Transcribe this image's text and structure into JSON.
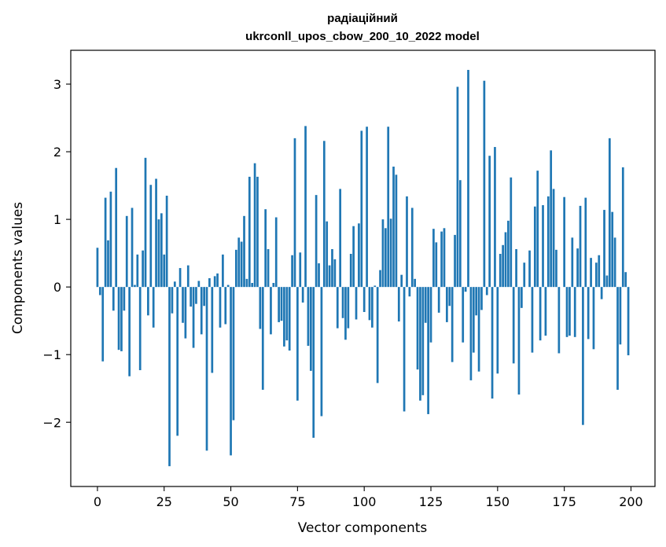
{
  "chart_data": {
    "type": "bar",
    "title_line1": "радіаційний",
    "title_line2": "ukrconll_upos_cbow_200_10_2022 model",
    "xlabel": "Vector components",
    "ylabel": "Components values",
    "xlim": [
      -10,
      209
    ],
    "ylim": [
      -2.95,
      3.5
    ],
    "x_ticks": [
      0,
      25,
      50,
      75,
      100,
      125,
      150,
      175,
      200
    ],
    "y_ticks": [
      -2,
      -1,
      0,
      1,
      2,
      3
    ],
    "bar_color": "#1f77b4",
    "grid": false,
    "values": [
      0.58,
      -0.12,
      -1.1,
      1.32,
      0.69,
      1.41,
      -0.35,
      1.76,
      -0.93,
      -0.95,
      -0.35,
      1.05,
      -1.32,
      1.17,
      0.03,
      0.48,
      -1.23,
      0.54,
      1.91,
      -0.42,
      1.51,
      -0.6,
      1.6,
      1.0,
      1.09,
      0.48,
      1.35,
      -2.65,
      -0.39,
      0.08,
      -2.2,
      0.28,
      -0.53,
      -0.76,
      0.32,
      -0.29,
      -0.9,
      -0.25,
      0.09,
      -0.7,
      -0.28,
      -2.42,
      0.13,
      -1.27,
      0.16,
      0.2,
      -0.6,
      0.48,
      -0.55,
      0.03,
      -2.49,
      -1.97,
      0.55,
      0.73,
      0.67,
      1.05,
      0.12,
      1.63,
      0.06,
      1.83,
      1.63,
      -0.62,
      -1.52,
      1.15,
      0.56,
      -0.7,
      0.06,
      1.03,
      -0.52,
      -0.5,
      -0.88,
      -0.79,
      -0.94,
      0.47,
      2.2,
      -1.68,
      0.51,
      -0.23,
      2.38,
      -0.87,
      -1.24,
      -2.23,
      1.36,
      0.35,
      -1.91,
      2.16,
      0.97,
      0.32,
      0.56,
      0.41,
      -0.61,
      1.45,
      -0.46,
      -0.78,
      -0.61,
      0.49,
      0.9,
      -0.48,
      0.94,
      2.31,
      -0.37,
      2.37,
      -0.49,
      -0.6,
      0.02,
      -1.42,
      0.25,
      1.0,
      0.87,
      2.37,
      1.01,
      1.78,
      1.66,
      -0.51,
      0.18,
      -1.84,
      1.34,
      -0.14,
      1.17,
      0.12,
      -1.22,
      -1.68,
      -1.6,
      -0.53,
      -1.88,
      -0.82,
      0.86,
      0.66,
      -0.38,
      0.82,
      0.87,
      -0.52,
      -0.28,
      -1.11,
      0.77,
      2.96,
      1.58,
      -0.82,
      -0.07,
      3.21,
      -1.38,
      -0.97,
      -0.42,
      -1.25,
      -0.34,
      3.05,
      -0.12,
      1.94,
      -1.65,
      2.07,
      -1.28,
      0.49,
      0.62,
      0.81,
      0.98,
      1.62,
      -1.13,
      0.56,
      -1.59,
      -0.31,
      0.36,
      0.0,
      0.54,
      -0.97,
      1.19,
      1.72,
      -0.79,
      1.21,
      -0.72,
      1.34,
      2.02,
      1.45,
      0.55,
      -0.98,
      0.0,
      1.33,
      -0.74,
      -0.72,
      0.73,
      -0.74,
      0.57,
      1.2,
      -2.04,
      1.32,
      -0.77,
      0.43,
      -0.92,
      0.36,
      0.47,
      -0.18,
      1.14,
      0.17,
      2.2,
      1.11,
      0.73,
      -1.52,
      -0.85,
      1.77,
      0.22,
      -1.01
    ]
  }
}
